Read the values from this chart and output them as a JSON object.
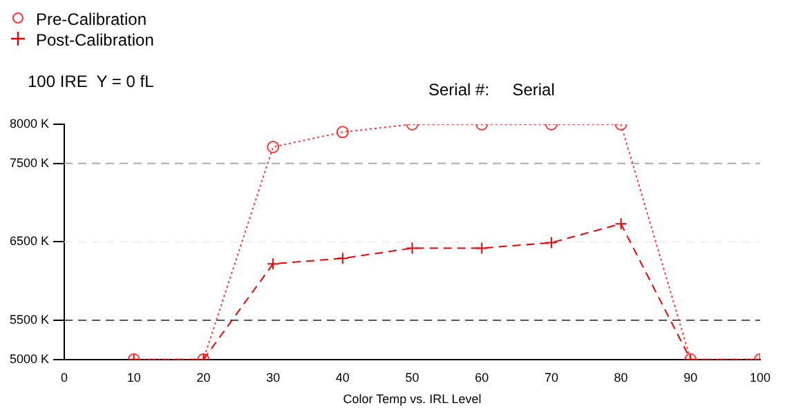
{
  "chart_data": {
    "type": "line",
    "xlabel": "Color Temp vs. IRL Level",
    "annotations": [
      "100 IRE  Y = 0 fL",
      "Serial #:     Serial"
    ],
    "x": [
      10,
      20,
      30,
      40,
      50,
      60,
      70,
      80,
      90,
      100
    ],
    "series": [
      {
        "name": "Pre-Calibration",
        "color": "#ff3333",
        "marker": "circle",
        "line_style": "dotted",
        "values": [
          5000,
          5000,
          7710,
          7900,
          8000,
          8000,
          8000,
          8000,
          5000,
          5000
        ]
      },
      {
        "name": "Post-Calibration",
        "color": "#ee0000",
        "marker": "cross",
        "line_style": "dashed",
        "values": [
          5000,
          5000,
          6220,
          6290,
          6420,
          6420,
          6490,
          6730,
          5000,
          5000
        ]
      }
    ],
    "xlim": [
      0,
      100
    ],
    "xticks": [
      0,
      10,
      20,
      30,
      40,
      50,
      60,
      70,
      80,
      90,
      100
    ],
    "ylim": [
      5000,
      8000
    ],
    "yticks": [
      {
        "value": 5000,
        "label": "5000 K"
      },
      {
        "value": 5500,
        "label": "5500 K"
      },
      {
        "value": 6500,
        "label": "6500 K"
      },
      {
        "value": 7500,
        "label": "7500 K"
      },
      {
        "value": 8000,
        "label": "8000 K"
      }
    ],
    "ref_lines": [
      {
        "axis": "y",
        "value": 7500,
        "color": "#aaaaaa",
        "line_style": "dashed"
      },
      {
        "axis": "y",
        "value": 6500,
        "color": "#eeeeee",
        "line_style": "dashed"
      },
      {
        "axis": "y",
        "value": 5500,
        "color": "#555555",
        "line_style": "dashed"
      }
    ],
    "grid": false,
    "legend": "top left"
  }
}
